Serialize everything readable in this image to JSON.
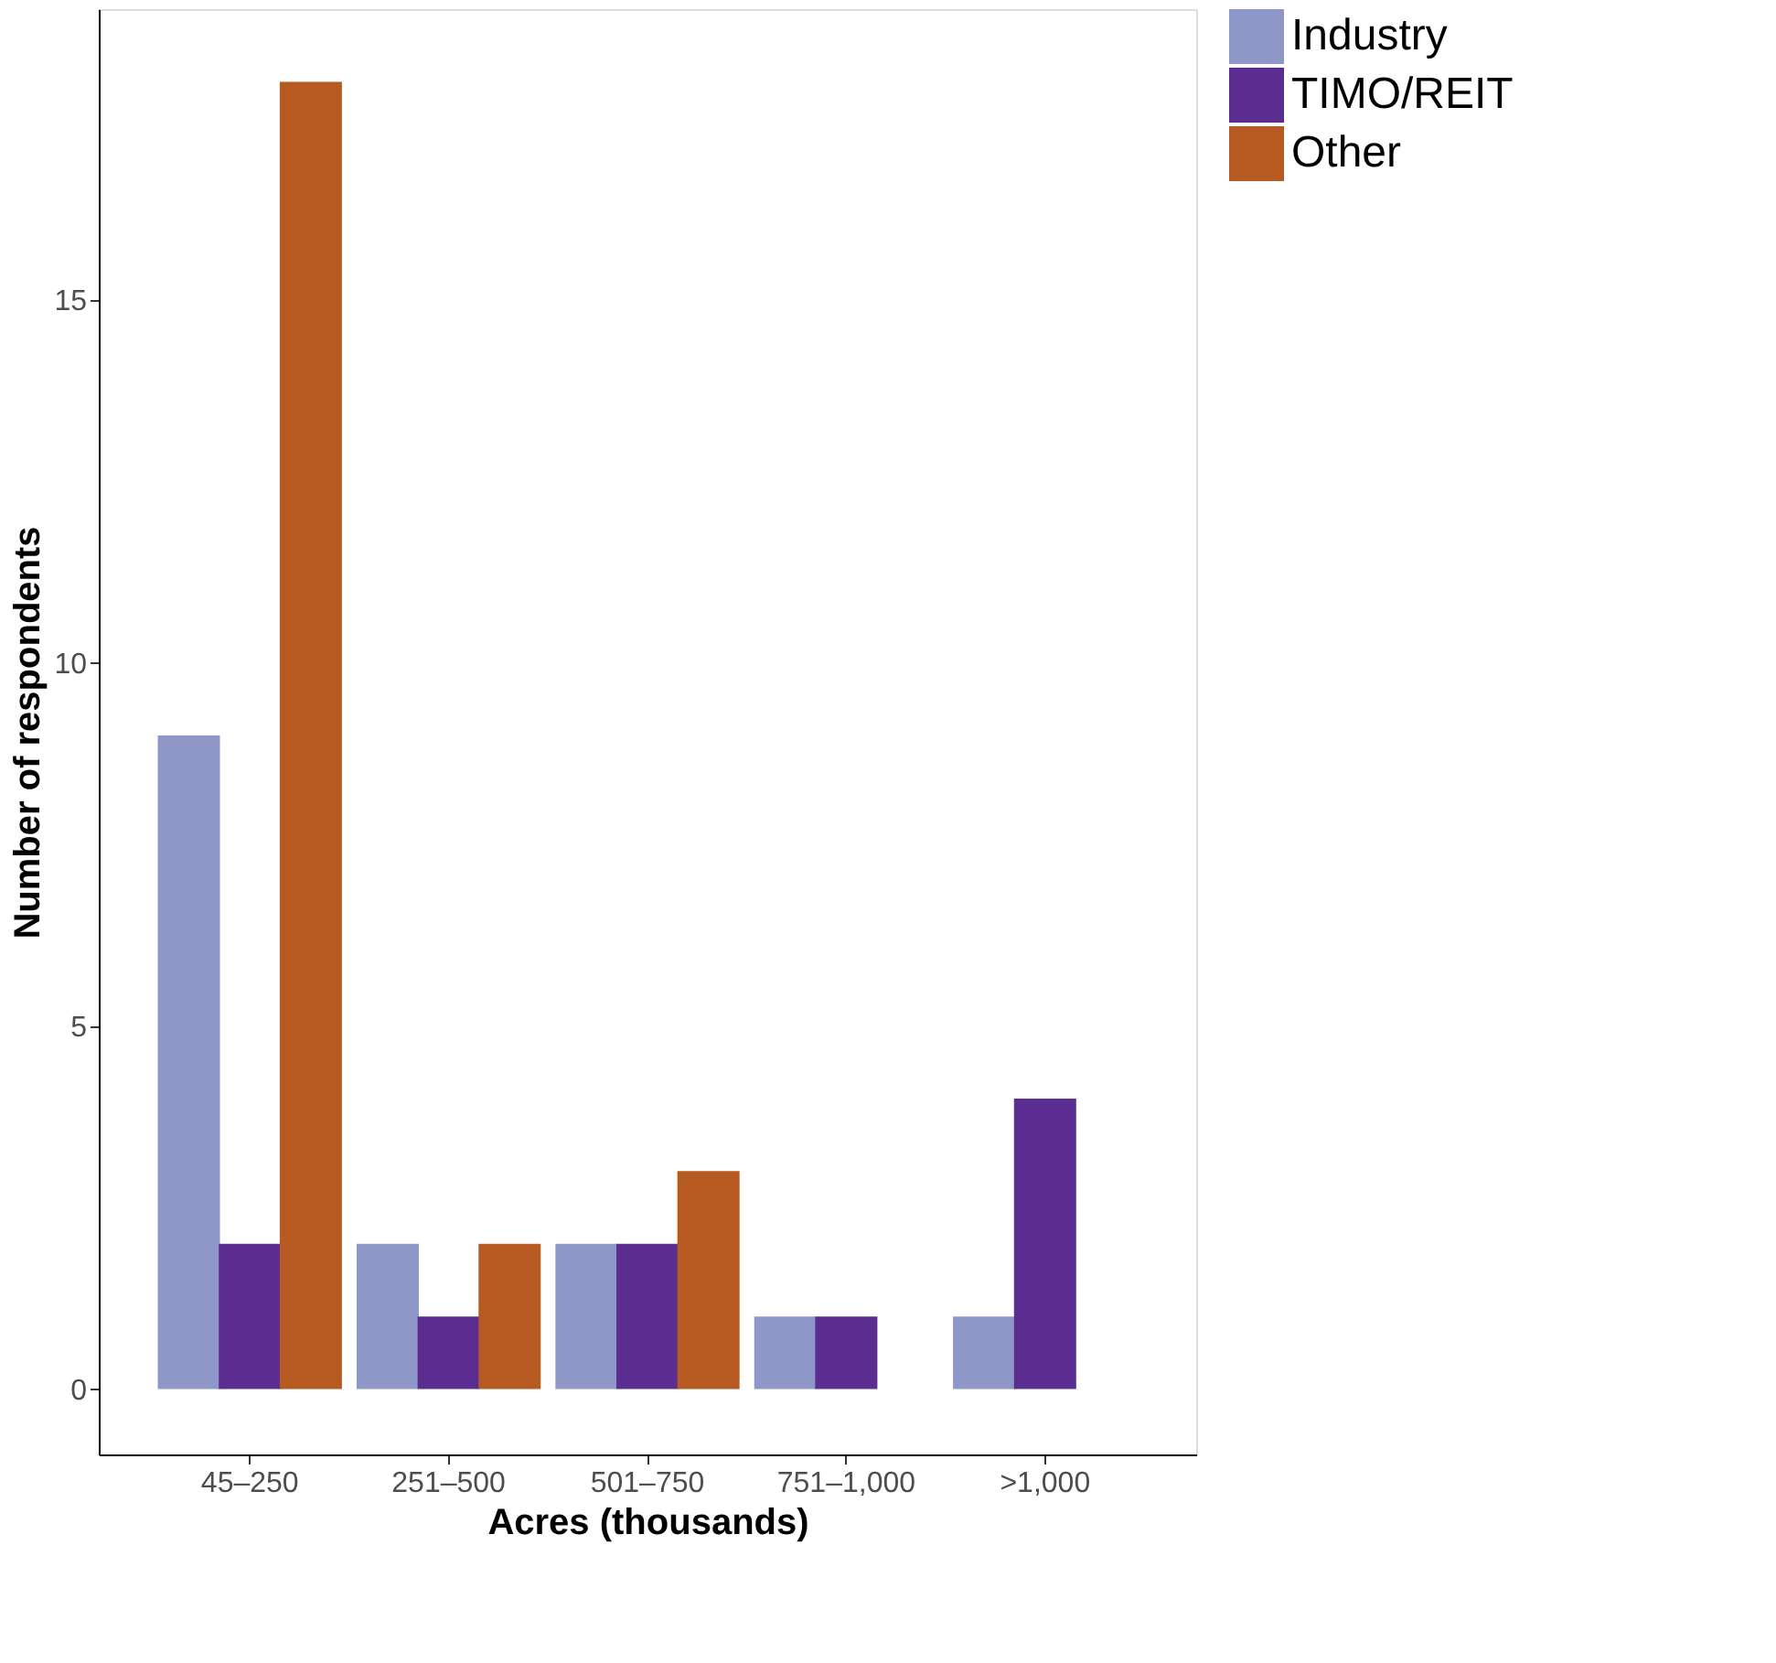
{
  "chart_data": {
    "type": "bar",
    "xlabel": "Acres (thousands)",
    "ylabel": "Number of respondents",
    "categories": [
      "45–250",
      "251–500",
      "501–750",
      "751–1,000",
      ">1,000"
    ],
    "series": [
      {
        "name": "Industry",
        "color": "#8f96c8",
        "values": [
          9,
          2,
          2,
          1,
          1
        ]
      },
      {
        "name": "TIMO/REIT",
        "color": "#5b2d91",
        "values": [
          2,
          1,
          2,
          1,
          4
        ]
      },
      {
        "name": "Other",
        "color": "#b65a22",
        "values": [
          18,
          2,
          3,
          null,
          null
        ]
      }
    ],
    "ylim": [
      -0.9,
      19
    ],
    "yticks": [
      0,
      5,
      10,
      15
    ],
    "grid": false,
    "legend": "right"
  }
}
